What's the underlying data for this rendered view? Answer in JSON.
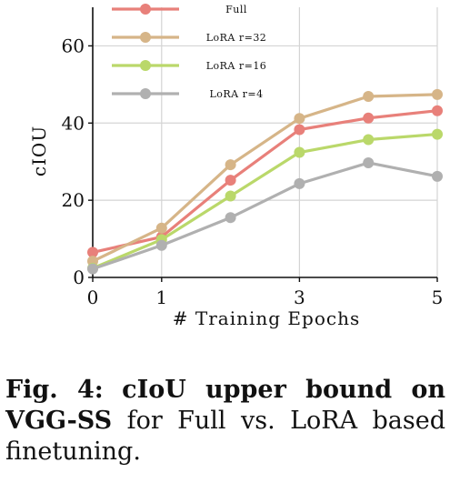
{
  "chart_data": {
    "type": "line",
    "x": [
      0,
      1,
      2,
      3,
      4,
      5
    ],
    "xticks": [
      "0",
      "1",
      "3",
      "5"
    ],
    "xtick_values": [
      0,
      1,
      3,
      5
    ],
    "yticks": [
      "0",
      "20",
      "40",
      "60"
    ],
    "ytick_values": [
      0,
      20,
      40,
      60
    ],
    "xlabel": "# Training Epochs",
    "ylabel": "cIOU",
    "xlim": [
      0,
      5
    ],
    "ylim": [
      0,
      70
    ],
    "grid": true,
    "legend_position": "top-left",
    "series": [
      {
        "name": "Full",
        "color": "#e8807a",
        "values": [
          6.5,
          10.5,
          25.2,
          38.3,
          41.3,
          43.2
        ]
      },
      {
        "name": "LoRA r=32",
        "color": "#d6b588",
        "values": [
          4.2,
          12.8,
          29.2,
          41.2,
          46.9,
          47.4
        ]
      },
      {
        "name": "LoRA r=16",
        "color": "#bad86a",
        "values": [
          2.4,
          9.8,
          21.1,
          32.4,
          35.7,
          37.1
        ]
      },
      {
        "name": "LoRA r=4",
        "color": "#b0b0b0",
        "values": [
          2.2,
          8.3,
          15.5,
          24.3,
          29.7,
          26.2
        ]
      }
    ]
  },
  "caption": {
    "label": "Fig. 4:",
    "bold_text": "cIoU upper bound on VGG-SS",
    "rest_text": " for Full vs. LoRA based finetuning."
  }
}
